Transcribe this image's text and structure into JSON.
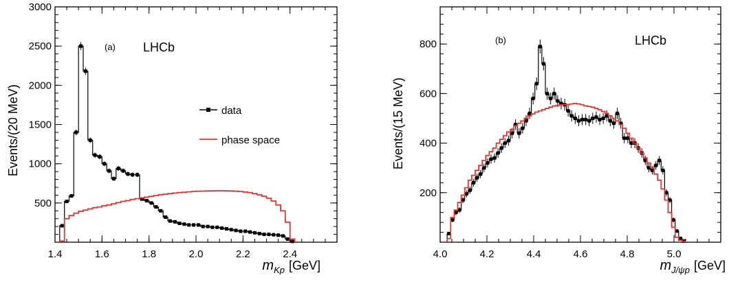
{
  "chart_data": [
    {
      "type": "line",
      "panel_label": "(a)",
      "experiment": "LHCb",
      "ylabel": "Events/(20 MeV)",
      "xlabel_var": "m",
      "xlabel_sub": "Kp",
      "xlabel_unit": "[GeV]",
      "xlim": [
        1.4,
        2.6
      ],
      "ylim": [
        0,
        3000
      ],
      "xticks": [
        "1.4",
        "1.6",
        "1.8",
        "2.0",
        "2.2",
        "2.4"
      ],
      "yticks": [
        "500",
        "1000",
        "1500",
        "2000",
        "2500",
        "3000"
      ],
      "legend": {
        "data_label": "data",
        "model_label": "phase space",
        "placement": "right"
      },
      "bin_width": 0.02,
      "x_start": 1.42,
      "series": [
        {
          "name": "data",
          "color": "#000000",
          "style": "points-step",
          "values": [
            210,
            520,
            590,
            1400,
            2500,
            2180,
            1300,
            1110,
            1090,
            1000,
            910,
            810,
            940,
            910,
            870,
            860,
            860,
            550,
            530,
            500,
            450,
            400,
            320,
            270,
            260,
            240,
            230,
            220,
            220,
            220,
            200,
            200,
            190,
            190,
            180,
            170,
            160,
            150,
            140,
            140,
            130,
            120,
            110,
            100,
            100,
            95,
            90,
            80,
            40,
            10
          ]
        },
        {
          "name": "phase space",
          "color": "#e8322e",
          "style": "step",
          "values": [
            15,
            300,
            340,
            370,
            395,
            410,
            425,
            440,
            450,
            465,
            475,
            490,
            505,
            520,
            530,
            545,
            555,
            565,
            575,
            585,
            595,
            605,
            612,
            620,
            626,
            632,
            638,
            642,
            647,
            650,
            652,
            654,
            655,
            656,
            656,
            655,
            653,
            650,
            646,
            640,
            632,
            620,
            605,
            586,
            560,
            525,
            475,
            400,
            255,
            40
          ]
        }
      ]
    },
    {
      "type": "line",
      "panel_label": "(b)",
      "experiment": "LHCb",
      "ylabel": "Events/(15 MeV)",
      "xlabel_var": "m",
      "xlabel_sub": "J/ψp",
      "xlabel_unit": "[GeV]",
      "xlim": [
        4.0,
        5.2
      ],
      "ylim": [
        0,
        950
      ],
      "xticks": [
        "4.0",
        "4.2",
        "4.4",
        "4.6",
        "4.8",
        "5.0"
      ],
      "yticks": [
        "200",
        "400",
        "600",
        "800"
      ],
      "bin_width": 0.015,
      "x_start": 4.03,
      "series": [
        {
          "name": "data",
          "color": "#000000",
          "style": "points-step",
          "values": [
            35,
            90,
            120,
            130,
            170,
            195,
            210,
            240,
            260,
            275,
            300,
            320,
            335,
            340,
            360,
            380,
            400,
            410,
            440,
            475,
            440,
            460,
            490,
            520,
            580,
            640,
            790,
            720,
            600,
            580,
            600,
            570,
            560,
            555,
            530,
            510,
            500,
            490,
            495,
            495,
            490,
            500,
            505,
            495,
            500,
            510,
            490,
            480,
            520,
            480,
            420,
            420,
            400,
            400,
            380,
            360,
            330,
            300,
            290,
            310,
            330,
            290,
            200,
            170,
            90,
            45,
            15,
            5
          ]
        },
        {
          "name": "phase space",
          "color": "#e8322e",
          "style": "step",
          "values": [
            15,
            100,
            130,
            160,
            190,
            220,
            250,
            270,
            290,
            310,
            330,
            350,
            365,
            380,
            400,
            415,
            430,
            445,
            455,
            470,
            480,
            490,
            500,
            510,
            518,
            525,
            530,
            535,
            540,
            545,
            550,
            552,
            555,
            556,
            556,
            558,
            560,
            558,
            555,
            550,
            548,
            545,
            540,
            535,
            528,
            520,
            510,
            500,
            490,
            475,
            460,
            440,
            420,
            400,
            380,
            360,
            340,
            320,
            300,
            275,
            250,
            215,
            170,
            120,
            60,
            20,
            8,
            4
          ]
        }
      ]
    }
  ]
}
